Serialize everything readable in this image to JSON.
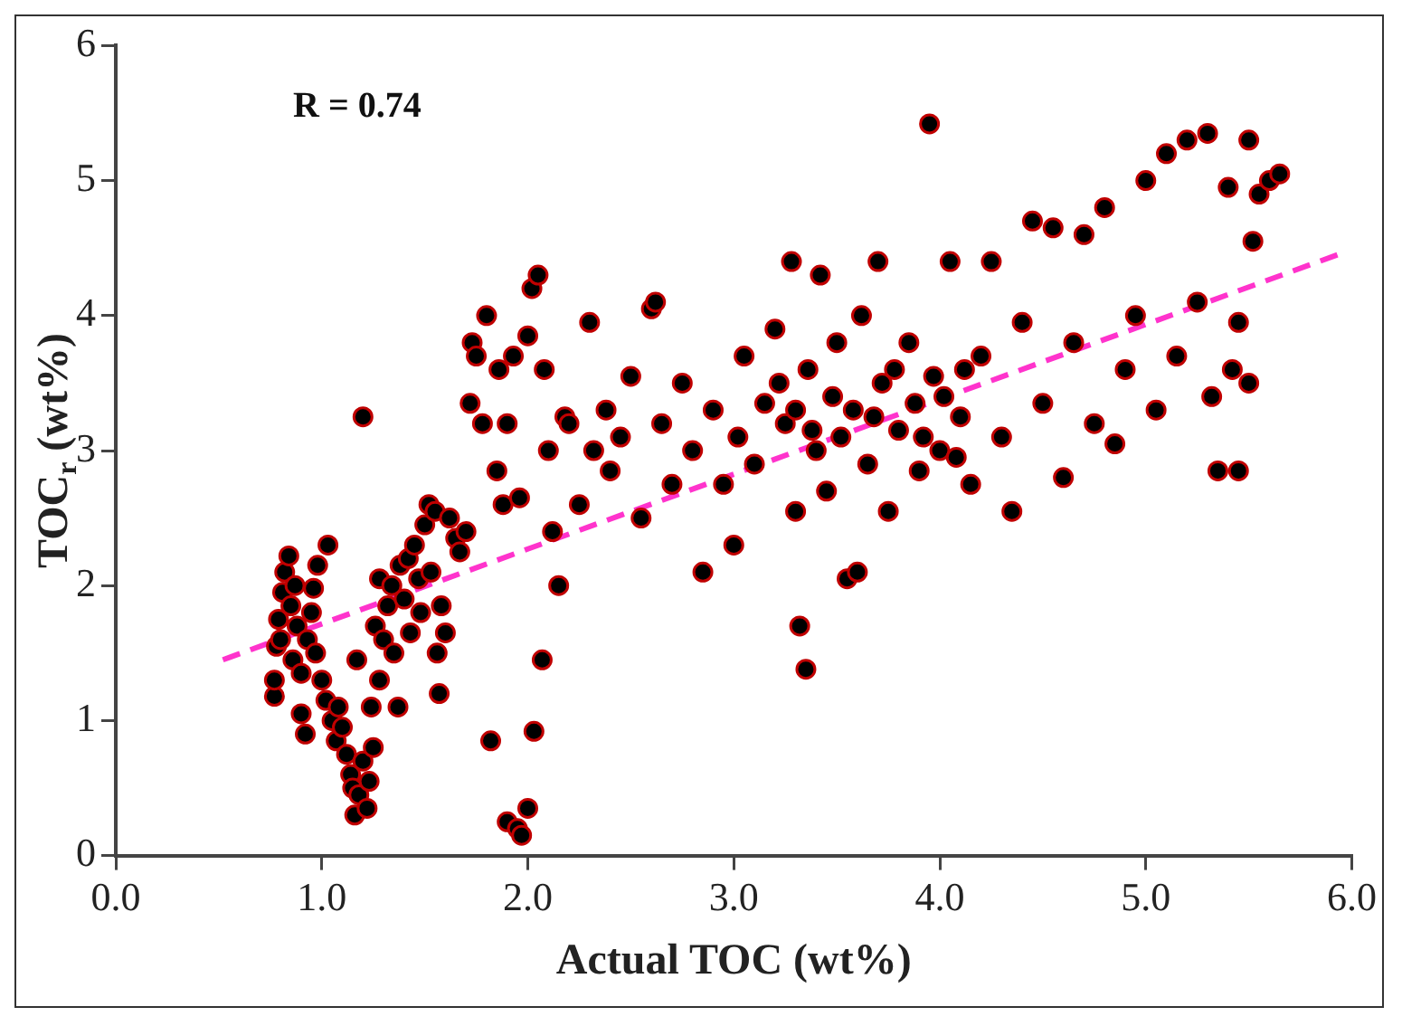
{
  "chart_data": {
    "type": "scatter",
    "xlabel": "Actual TOC (wt%)",
    "ylabel": "TOC$_{r}$ (wt%)",
    "annotations": [
      "R = 0.74"
    ],
    "xlim": [
      0,
      6
    ],
    "ylim": [
      0,
      6
    ],
    "xticks": [
      {
        "value": 0,
        "label": "0.0"
      },
      {
        "value": 1,
        "label": "1.0"
      },
      {
        "value": 2,
        "label": "2.0"
      },
      {
        "value": 3,
        "label": "3.0"
      },
      {
        "value": 4,
        "label": "4.0"
      },
      {
        "value": 5,
        "label": "5.0"
      },
      {
        "value": 6,
        "label": "6.0"
      }
    ],
    "yticks": [
      0,
      1,
      2,
      3,
      4,
      5,
      6
    ],
    "grid": false,
    "legend": false,
    "marker": "circle",
    "series": [
      {
        "color": "#c00000",
        "x": [
          0.77,
          0.77,
          0.78,
          0.79,
          0.8,
          0.81,
          0.82,
          0.84,
          0.85,
          0.86,
          0.87,
          0.88,
          0.9,
          0.9,
          0.92,
          0.93,
          0.95,
          0.97,
          0.98,
          1.0,
          1.02,
          1.03,
          1.05,
          0.96,
          1.07,
          1.08,
          1.1,
          1.12,
          1.14,
          1.15,
          1.16,
          1.18,
          1.2,
          1.22,
          1.23,
          1.25,
          1.2,
          1.17,
          1.24,
          1.26,
          1.28,
          1.3,
          1.28,
          1.32,
          1.34,
          1.35,
          1.37,
          1.38,
          1.4,
          1.42,
          1.43,
          1.45,
          1.47,
          1.48,
          1.5,
          1.52,
          1.53,
          1.55,
          1.56,
          1.57,
          1.58,
          1.6,
          1.62,
          1.65,
          1.67,
          1.7,
          1.72,
          1.73,
          1.75,
          1.78,
          1.8,
          1.82,
          1.85,
          1.86,
          1.88,
          1.9,
          1.9,
          1.95,
          1.97,
          2.0,
          2.03,
          2.07,
          1.93,
          1.96,
          2.0,
          2.02,
          2.05,
          2.08,
          2.1,
          2.12,
          2.15,
          2.18,
          2.2,
          2.25,
          2.3,
          2.32,
          2.38,
          2.4,
          2.45,
          2.5,
          2.55,
          2.6,
          2.62,
          2.65,
          2.7,
          2.75,
          2.8,
          2.85,
          2.9,
          2.95,
          3.0,
          3.02,
          3.05,
          3.1,
          3.15,
          3.2,
          3.25,
          3.28,
          3.3,
          3.32,
          3.35,
          3.36,
          3.4,
          3.42,
          3.45,
          3.5,
          3.55,
          3.58,
          3.6,
          3.62,
          3.65,
          3.7,
          3.72,
          3.75,
          3.8,
          3.85,
          3.9,
          3.95,
          3.97,
          4.0,
          4.05,
          4.1,
          4.15,
          4.2,
          4.25,
          4.3,
          4.35,
          4.4,
          4.45,
          4.5,
          4.55,
          4.6,
          4.65,
          4.7,
          4.75,
          4.8,
          4.85,
          4.9,
          4.95,
          5.0,
          5.05,
          5.1,
          5.15,
          5.2,
          5.25,
          5.3,
          5.32,
          5.35,
          5.4,
          5.42,
          5.45,
          5.5,
          5.52,
          5.55,
          5.6,
          5.65,
          5.5,
          5.45,
          3.22,
          3.3,
          3.38,
          3.48,
          3.52,
          3.68,
          3.78,
          3.88,
          3.92,
          4.02,
          4.12,
          4.08
        ],
        "values": [
          1.18,
          1.3,
          1.55,
          1.75,
          1.6,
          1.95,
          2.1,
          2.22,
          1.85,
          1.45,
          2.0,
          1.7,
          1.35,
          1.05,
          0.9,
          1.6,
          1.8,
          1.5,
          2.15,
          1.3,
          1.15,
          2.3,
          1.0,
          1.98,
          0.85,
          1.1,
          0.95,
          0.75,
          0.6,
          0.5,
          0.3,
          0.45,
          0.7,
          0.35,
          0.55,
          0.8,
          3.25,
          1.45,
          1.1,
          1.7,
          2.05,
          1.6,
          1.3,
          1.85,
          2.0,
          1.5,
          1.1,
          2.15,
          1.9,
          2.2,
          1.65,
          2.3,
          2.05,
          1.8,
          2.45,
          2.6,
          2.1,
          2.55,
          1.5,
          1.2,
          1.85,
          1.65,
          2.5,
          2.35,
          2.25,
          2.4,
          3.35,
          3.8,
          3.7,
          3.2,
          4.0,
          0.85,
          2.85,
          3.6,
          2.6,
          3.2,
          0.25,
          0.2,
          0.15,
          0.35,
          0.92,
          1.45,
          3.7,
          2.65,
          3.85,
          4.2,
          4.3,
          3.6,
          3.0,
          2.4,
          2.0,
          3.25,
          3.2,
          2.6,
          3.95,
          3.0,
          3.3,
          2.85,
          3.1,
          3.55,
          2.5,
          4.05,
          4.1,
          3.2,
          2.75,
          3.5,
          3.0,
          2.1,
          3.3,
          2.75,
          2.3,
          3.1,
          3.7,
          2.9,
          3.35,
          3.9,
          3.2,
          4.4,
          2.55,
          1.7,
          1.38,
          3.6,
          3.0,
          4.3,
          2.7,
          3.8,
          2.05,
          3.3,
          2.1,
          4.0,
          2.9,
          4.4,
          3.5,
          2.55,
          3.15,
          3.8,
          2.85,
          5.42,
          3.55,
          3.0,
          4.4,
          3.25,
          2.75,
          3.7,
          4.4,
          3.1,
          2.55,
          3.95,
          4.7,
          3.35,
          4.65,
          2.8,
          3.8,
          4.6,
          3.2,
          4.8,
          3.05,
          3.6,
          4.0,
          5.0,
          3.3,
          5.2,
          3.7,
          5.3,
          4.1,
          5.35,
          3.4,
          2.85,
          4.95,
          3.6,
          2.85,
          5.3,
          4.55,
          4.9,
          5.0,
          5.05,
          3.5,
          3.95,
          3.5,
          3.3,
          3.15,
          3.4,
          3.1,
          3.25,
          3.6,
          3.35,
          3.1,
          3.4,
          3.6,
          2.95
        ]
      },
      {
        "type": "line",
        "color": "#ff33cc",
        "line_style": "dashed",
        "marker": "none",
        "x": [
          0.52,
          5.93
        ],
        "values": [
          1.45,
          4.45
        ]
      }
    ]
  }
}
